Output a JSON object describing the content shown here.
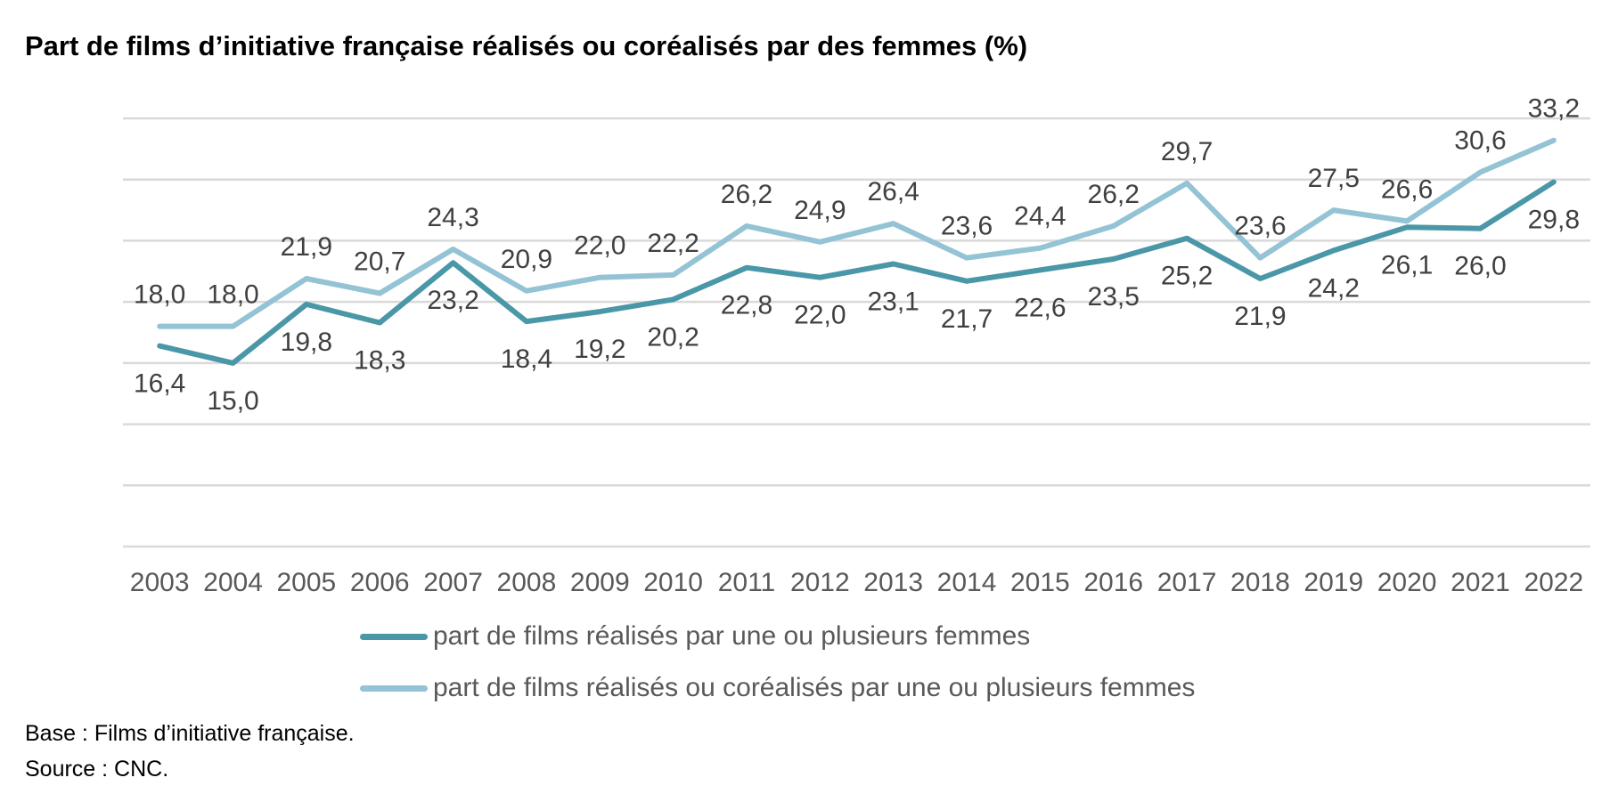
{
  "chart_data": {
    "type": "line",
    "title": "Part de films d’initiative française réalisés ou coréalisés par des femmes (%)",
    "categories": [
      "2003",
      "2004",
      "2005",
      "2006",
      "2007",
      "2008",
      "2009",
      "2010",
      "2011",
      "2012",
      "2013",
      "2014",
      "2015",
      "2016",
      "2017",
      "2018",
      "2019",
      "2020",
      "2021",
      "2022"
    ],
    "series": [
      {
        "name": "part de films réalisés par une ou plusieurs femmes",
        "color": "#4a97a8",
        "values": [
          16.4,
          15.0,
          19.8,
          18.3,
          23.2,
          18.4,
          19.2,
          20.2,
          22.8,
          22.0,
          23.1,
          21.7,
          22.6,
          23.5,
          25.2,
          21.9,
          24.2,
          26.1,
          26.0,
          29.8
        ],
        "labels": [
          "16,4",
          "15,0",
          "19,8",
          "18,3",
          "23,2",
          "18,4",
          "19,2",
          "20,2",
          "22,8",
          "22,0",
          "23,1",
          "21,7",
          "22,6",
          "23,5",
          "25,2",
          "21,9",
          "24,2",
          "26,1",
          "26,0",
          "29,8"
        ],
        "label_position": [
          "below",
          "below",
          "below",
          "below",
          "below",
          "below",
          "below",
          "below",
          "below",
          "below",
          "below",
          "below",
          "below",
          "below",
          "below",
          "below",
          "below",
          "below",
          "below",
          "below"
        ]
      },
      {
        "name": "part de films réalisés ou coréalisés par une ou plusieurs femmes",
        "color": "#93c3d4",
        "values": [
          18.0,
          18.0,
          21.9,
          20.7,
          24.3,
          20.9,
          22.0,
          22.2,
          26.2,
          24.9,
          26.4,
          23.6,
          24.4,
          26.2,
          29.7,
          23.6,
          27.5,
          26.6,
          30.6,
          33.2
        ],
        "labels": [
          "18,0",
          "18,0",
          "21,9",
          "20,7",
          "24,3",
          "20,9",
          "22,0",
          "22,2",
          "26,2",
          "24,9",
          "26,4",
          "23,6",
          "24,4",
          "26,2",
          "29,7",
          "23,6",
          "27,5",
          "26,6",
          "30,6",
          "33,2"
        ],
        "label_position": [
          "above",
          "above",
          "above",
          "above",
          "above",
          "above",
          "above",
          "above",
          "above",
          "above",
          "above",
          "above",
          "above",
          "above",
          "above",
          "above",
          "above",
          "above",
          "above",
          "above"
        ]
      }
    ],
    "ylim": [
      0,
      35
    ],
    "grid": true,
    "legend_position": "bottom"
  },
  "footnotes": {
    "base": "Base : Films d’initiative française.",
    "source": "Source : CNC."
  }
}
